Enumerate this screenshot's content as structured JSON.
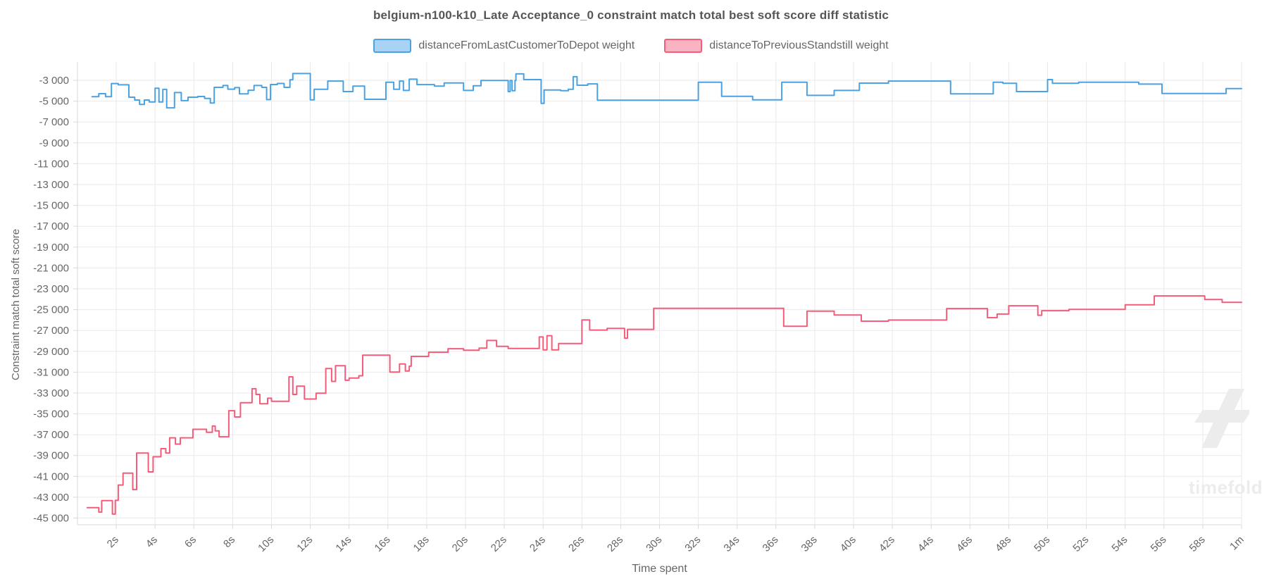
{
  "title": "belgium-n100-k10_Late Acceptance_0 constraint match total best soft score diff statistic",
  "legend": {
    "items": [
      {
        "label": "distanceFromLastCustomerToDepot weight",
        "line_color": "#4ba2e2",
        "fill_color": "#a9d3f4"
      },
      {
        "label": "distanceToPreviousStandstill weight",
        "line_color": "#f45c7a",
        "fill_color": "#f9b3c2"
      }
    ]
  },
  "watermark": {
    "brand": "timefold",
    "color": "#ececec"
  },
  "chart_data": {
    "type": "line",
    "stepped": true,
    "title": "belgium-n100-k10_Late Acceptance_0 constraint match total best soft score diff statistic",
    "xlabel": "Time spent",
    "ylabel": "Constraint match total soft score",
    "x_unit": "seconds",
    "xlim": [
      0,
      60
    ],
    "ylim": [
      -45640,
      -1240
    ],
    "grid": true,
    "legend_position": "top",
    "grid_color": "#e9e9e9",
    "axis_border_color": "#dadada",
    "tick_color": "#d8d8d8",
    "tick_label_color": "#666666",
    "x_ticks": [
      {
        "t": 2,
        "label": "2s"
      },
      {
        "t": 4,
        "label": "4s"
      },
      {
        "t": 6,
        "label": "6s"
      },
      {
        "t": 8,
        "label": "8s"
      },
      {
        "t": 10,
        "label": "10s"
      },
      {
        "t": 12,
        "label": "12s"
      },
      {
        "t": 14,
        "label": "14s"
      },
      {
        "t": 16,
        "label": "16s"
      },
      {
        "t": 18,
        "label": "18s"
      },
      {
        "t": 20,
        "label": "20s"
      },
      {
        "t": 22,
        "label": "22s"
      },
      {
        "t": 24,
        "label": "24s"
      },
      {
        "t": 26,
        "label": "26s"
      },
      {
        "t": 28,
        "label": "28s"
      },
      {
        "t": 30,
        "label": "30s"
      },
      {
        "t": 32,
        "label": "32s"
      },
      {
        "t": 34,
        "label": "34s"
      },
      {
        "t": 36,
        "label": "36s"
      },
      {
        "t": 38,
        "label": "38s"
      },
      {
        "t": 40,
        "label": "40s"
      },
      {
        "t": 42,
        "label": "42s"
      },
      {
        "t": 44,
        "label": "44s"
      },
      {
        "t": 46,
        "label": "46s"
      },
      {
        "t": 48,
        "label": "48s"
      },
      {
        "t": 50,
        "label": "50s"
      },
      {
        "t": 52,
        "label": "52s"
      },
      {
        "t": 54,
        "label": "54s"
      },
      {
        "t": 56,
        "label": "56s"
      },
      {
        "t": 58,
        "label": "58s"
      },
      {
        "t": 60,
        "label": "1m"
      }
    ],
    "y_ticks": [
      {
        "v": -3000,
        "label": "-3 000"
      },
      {
        "v": -5000,
        "label": "-5 000"
      },
      {
        "v": -7000,
        "label": "-7 000"
      },
      {
        "v": -9000,
        "label": "-9 000"
      },
      {
        "v": -11000,
        "label": "-11 000"
      },
      {
        "v": -13000,
        "label": "-13 000"
      },
      {
        "v": -15000,
        "label": "-15 000"
      },
      {
        "v": -17000,
        "label": "-17 000"
      },
      {
        "v": -19000,
        "label": "-19 000"
      },
      {
        "v": -21000,
        "label": "-21 000"
      },
      {
        "v": -23000,
        "label": "-23 000"
      },
      {
        "v": -25000,
        "label": "-25 000"
      },
      {
        "v": -27000,
        "label": "-27 000"
      },
      {
        "v": -29000,
        "label": "-29 000"
      },
      {
        "v": -31000,
        "label": "-31 000"
      },
      {
        "v": -33000,
        "label": "-33 000"
      },
      {
        "v": -35000,
        "label": "-35 000"
      },
      {
        "v": -37000,
        "label": "-37 000"
      },
      {
        "v": -39000,
        "label": "-39 000"
      },
      {
        "v": -41000,
        "label": "-41 000"
      },
      {
        "v": -43000,
        "label": "-43 000"
      },
      {
        "v": -45000,
        "label": "-45 000"
      }
    ],
    "series": [
      {
        "name": "distanceFromLastCustomerToDepot weight",
        "color": "#4ba2e2",
        "points": [
          [
            0.75,
            -4570
          ],
          [
            1.1,
            -4280
          ],
          [
            1.45,
            -4570
          ],
          [
            1.75,
            -3310
          ],
          [
            2.1,
            -3430
          ],
          [
            2.65,
            -4620
          ],
          [
            2.95,
            -4890
          ],
          [
            3.2,
            -5310
          ],
          [
            3.45,
            -4890
          ],
          [
            3.7,
            -5070
          ],
          [
            4.0,
            -3760
          ],
          [
            4.2,
            -5070
          ],
          [
            4.4,
            -3870
          ],
          [
            4.6,
            -5640
          ],
          [
            5.0,
            -4170
          ],
          [
            5.35,
            -4950
          ],
          [
            5.7,
            -4620
          ],
          [
            6.2,
            -4550
          ],
          [
            6.55,
            -4740
          ],
          [
            6.85,
            -5180
          ],
          [
            7.05,
            -3670
          ],
          [
            7.5,
            -3500
          ],
          [
            7.75,
            -3850
          ],
          [
            8.1,
            -3700
          ],
          [
            8.35,
            -4300
          ],
          [
            8.8,
            -3950
          ],
          [
            9.1,
            -3500
          ],
          [
            9.5,
            -3670
          ],
          [
            9.75,
            -4850
          ],
          [
            9.95,
            -3400
          ],
          [
            10.3,
            -3300
          ],
          [
            10.65,
            -3670
          ],
          [
            10.95,
            -2950
          ],
          [
            11.1,
            -2350
          ],
          [
            12.0,
            -4870
          ],
          [
            12.2,
            -3860
          ],
          [
            12.9,
            -3070
          ],
          [
            13.7,
            -4080
          ],
          [
            14.2,
            -3560
          ],
          [
            14.8,
            -4820
          ],
          [
            15.9,
            -3180
          ],
          [
            16.3,
            -3860
          ],
          [
            16.6,
            -3070
          ],
          [
            16.8,
            -3970
          ],
          [
            17.1,
            -2890
          ],
          [
            17.5,
            -3410
          ],
          [
            18.4,
            -3560
          ],
          [
            18.9,
            -3250
          ],
          [
            19.9,
            -3970
          ],
          [
            20.4,
            -3520
          ],
          [
            20.8,
            -3020
          ],
          [
            22.2,
            -4080
          ],
          [
            22.3,
            -3020
          ],
          [
            22.4,
            -4000
          ],
          [
            22.55,
            -3020
          ],
          [
            22.6,
            -2380
          ],
          [
            23.0,
            -2930
          ],
          [
            23.9,
            -5210
          ],
          [
            24.05,
            -3930
          ],
          [
            24.9,
            -4000
          ],
          [
            25.3,
            -3860
          ],
          [
            25.55,
            -2650
          ],
          [
            25.75,
            -3470
          ],
          [
            26.3,
            -3340
          ],
          [
            26.8,
            -4910
          ],
          [
            32.0,
            -3180
          ],
          [
            33.2,
            -4530
          ],
          [
            34.8,
            -4870
          ],
          [
            36.3,
            -3180
          ],
          [
            37.6,
            -4440
          ],
          [
            39.0,
            -3970
          ],
          [
            40.3,
            -3270
          ],
          [
            41.8,
            -3070
          ],
          [
            45.0,
            -4300
          ],
          [
            47.2,
            -3180
          ],
          [
            47.7,
            -3290
          ],
          [
            48.4,
            -4080
          ],
          [
            50.0,
            -2930
          ],
          [
            50.25,
            -3290
          ],
          [
            51.6,
            -3180
          ],
          [
            54.7,
            -3360
          ],
          [
            55.9,
            -4260
          ],
          [
            59.2,
            -3790
          ],
          [
            60,
            -3790
          ]
        ]
      },
      {
        "name": "distanceToPreviousStandstill weight",
        "color": "#f45c7a",
        "points": [
          [
            0.5,
            -44000
          ],
          [
            1.1,
            -44430
          ],
          [
            1.25,
            -43330
          ],
          [
            1.8,
            -44620
          ],
          [
            1.95,
            -43300
          ],
          [
            2.1,
            -41830
          ],
          [
            2.35,
            -40690
          ],
          [
            2.85,
            -42270
          ],
          [
            3.05,
            -38770
          ],
          [
            3.65,
            -40570
          ],
          [
            3.9,
            -39120
          ],
          [
            4.3,
            -38340
          ],
          [
            4.55,
            -38770
          ],
          [
            4.75,
            -37300
          ],
          [
            5.05,
            -37900
          ],
          [
            5.3,
            -37300
          ],
          [
            5.95,
            -36480
          ],
          [
            6.65,
            -36770
          ],
          [
            6.95,
            -36170
          ],
          [
            7.1,
            -36640
          ],
          [
            7.3,
            -37200
          ],
          [
            7.8,
            -34700
          ],
          [
            8.1,
            -35300
          ],
          [
            8.4,
            -33930
          ],
          [
            9.0,
            -32590
          ],
          [
            9.2,
            -33140
          ],
          [
            9.4,
            -34030
          ],
          [
            9.8,
            -33500
          ],
          [
            10.0,
            -33800
          ],
          [
            10.9,
            -31450
          ],
          [
            11.1,
            -33140
          ],
          [
            11.3,
            -32340
          ],
          [
            11.7,
            -33580
          ],
          [
            12.3,
            -33020
          ],
          [
            12.8,
            -30650
          ],
          [
            13.1,
            -31890
          ],
          [
            13.3,
            -30380
          ],
          [
            13.8,
            -31780
          ],
          [
            14.0,
            -31560
          ],
          [
            14.5,
            -31350
          ],
          [
            14.7,
            -29370
          ],
          [
            16.1,
            -30990
          ],
          [
            16.6,
            -30210
          ],
          [
            16.9,
            -30890
          ],
          [
            17.1,
            -30430
          ],
          [
            17.2,
            -29490
          ],
          [
            18.1,
            -29090
          ],
          [
            19.1,
            -28750
          ],
          [
            19.9,
            -28900
          ],
          [
            20.7,
            -28700
          ],
          [
            21.1,
            -27960
          ],
          [
            21.6,
            -28530
          ],
          [
            22.2,
            -28730
          ],
          [
            23.8,
            -27620
          ],
          [
            24.0,
            -28870
          ],
          [
            24.2,
            -27500
          ],
          [
            24.45,
            -28870
          ],
          [
            24.8,
            -28260
          ],
          [
            26.0,
            -25990
          ],
          [
            26.4,
            -26960
          ],
          [
            27.3,
            -26800
          ],
          [
            28.2,
            -27740
          ],
          [
            28.35,
            -26890
          ],
          [
            29.7,
            -24880
          ],
          [
            36.4,
            -26600
          ],
          [
            37.6,
            -25140
          ],
          [
            39.0,
            -25520
          ],
          [
            40.4,
            -26110
          ],
          [
            41.8,
            -26000
          ],
          [
            44.8,
            -24900
          ],
          [
            46.9,
            -25770
          ],
          [
            47.4,
            -25430
          ],
          [
            48.0,
            -24630
          ],
          [
            49.5,
            -25540
          ],
          [
            49.7,
            -25100
          ],
          [
            51.1,
            -24980
          ],
          [
            54.0,
            -24540
          ],
          [
            55.5,
            -23680
          ],
          [
            58.1,
            -24030
          ],
          [
            59.0,
            -24300
          ],
          [
            60,
            -24300
          ]
        ]
      }
    ]
  }
}
